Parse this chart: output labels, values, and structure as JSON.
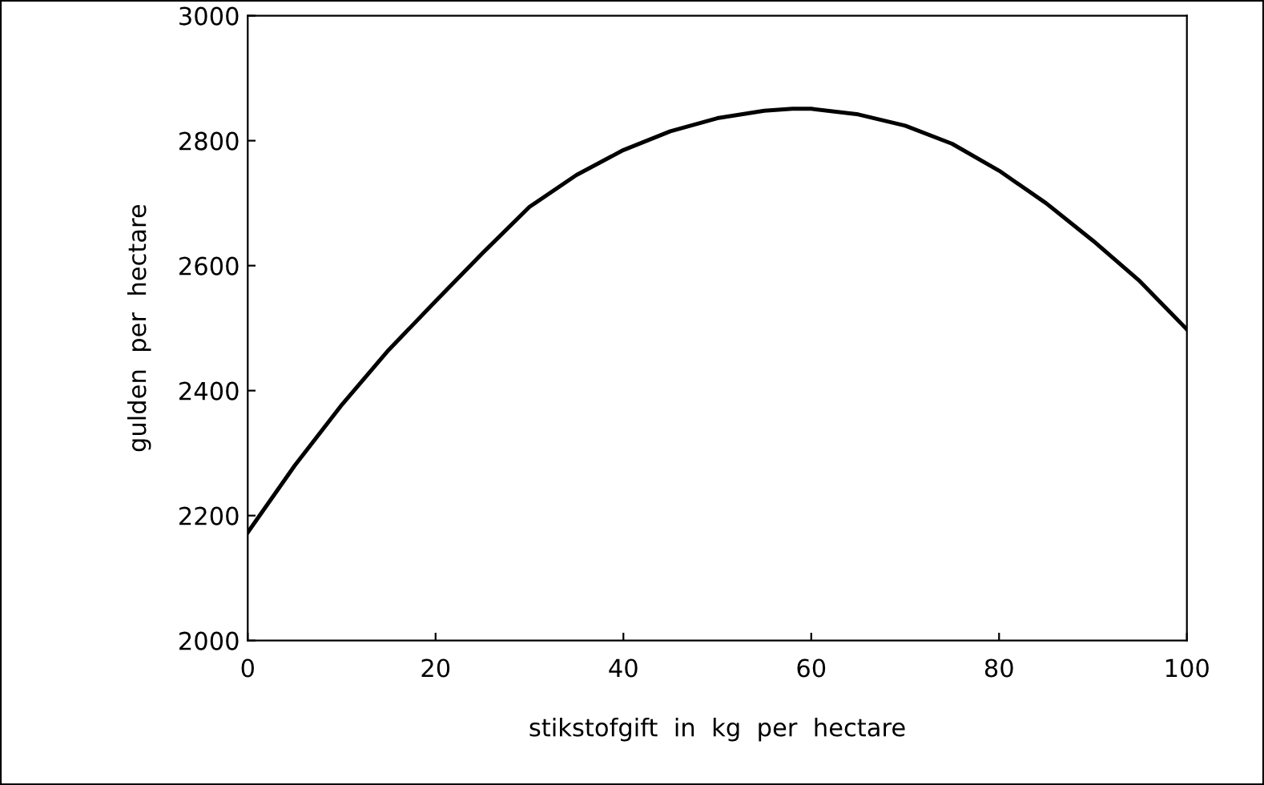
{
  "chart_data": {
    "type": "line",
    "xlabel": "stikstofgift  in  kg  per  hectare",
    "ylabel": "gulden  per  hectare",
    "x": [
      0,
      5,
      10,
      15,
      20,
      25,
      30,
      35,
      40,
      45,
      50,
      55,
      58,
      60,
      65,
      70,
      75,
      80,
      85,
      90,
      95,
      100
    ],
    "series": [
      {
        "color": "#000000",
        "values": [
          2173,
          2280,
          2377,
          2465,
          2543,
          2620,
          2694,
          2745,
          2785,
          2815,
          2836,
          2848,
          2851,
          2851,
          2842,
          2824,
          2795,
          2752,
          2700,
          2640,
          2575,
          2498
        ]
      }
    ],
    "xlim": [
      0,
      100
    ],
    "ylim": [
      2000,
      3000
    ],
    "xticks": [
      0,
      20,
      40,
      60,
      80,
      100
    ],
    "yticks": [
      2000,
      2200,
      2400,
      2600,
      2800,
      3000
    ],
    "grid": false,
    "marker": "none",
    "line_style": "solid"
  }
}
